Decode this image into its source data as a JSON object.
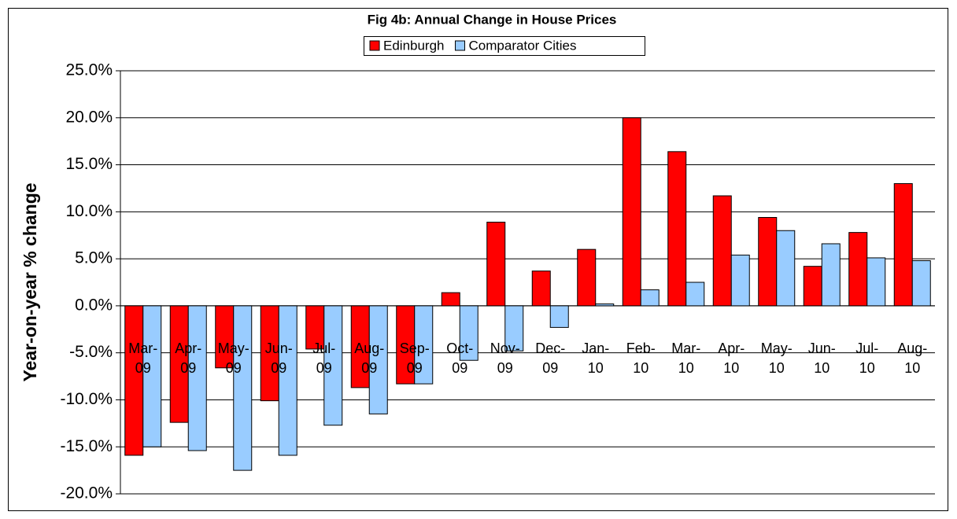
{
  "chart_data": {
    "type": "bar",
    "title": "Fig 4b: Annual Change in House Prices",
    "y_label": "Year-on-year % change",
    "categories": [
      "Mar-\n09",
      "Apr-\n09",
      "May-\n09",
      "Jun-\n09",
      "Jul-\n09",
      "Aug-\n09",
      "Sep-\n09",
      "Oct-\n09",
      "Nov-\n09",
      "Dec-\n09",
      "Jan-\n10",
      "Feb-\n10",
      "Mar-\n10",
      "Apr-\n10",
      "May-\n10",
      "Jun-\n10",
      "Jul-\n10",
      "Aug-\n10"
    ],
    "series": [
      {
        "name": "Edinburgh",
        "color": "#ff0000",
        "values": [
          -15.9,
          -12.4,
          -6.6,
          -10.1,
          -4.6,
          -8.7,
          -8.3,
          1.4,
          8.9,
          3.7,
          6.0,
          20.0,
          16.4,
          11.7,
          9.4,
          4.2,
          7.8,
          13.0
        ]
      },
      {
        "name": "Comparator Cities",
        "color": "#99ccff",
        "values": [
          -15.0,
          -15.4,
          -17.5,
          -15.9,
          -12.7,
          -11.5,
          -8.3,
          -5.8,
          -4.8,
          -2.3,
          0.2,
          1.7,
          2.5,
          5.4,
          8.0,
          6.6,
          5.1,
          4.8
        ]
      }
    ],
    "ylim": [
      -20,
      25
    ],
    "yticks": [
      {
        "value": 25,
        "label": "25.0%"
      },
      {
        "value": 20,
        "label": "20.0%"
      },
      {
        "value": 15,
        "label": "15.0%"
      },
      {
        "value": 10,
        "label": "10.0%"
      },
      {
        "value": 5,
        "label": "5.0%"
      },
      {
        "value": 0,
        "label": "0.0%"
      },
      {
        "value": -5,
        "label": "-5.0%"
      },
      {
        "value": -10,
        "label": "-10.0%"
      },
      {
        "value": -15,
        "label": "-15.0%"
      },
      {
        "value": -20,
        "label": "-20.0%"
      }
    ],
    "grid": true,
    "legend": "top"
  }
}
